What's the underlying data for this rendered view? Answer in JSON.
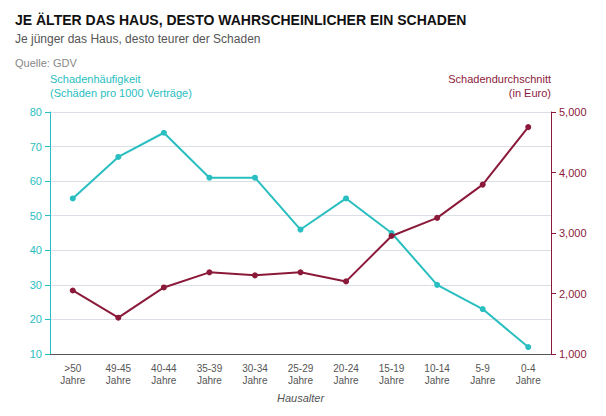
{
  "chart_data": {
    "type": "line",
    "title": "JE ÄLTER DAS HAUS, DESTO WAHRSCHEINLICHER EIN SCHADEN",
    "subtitle": "Je jünger das Haus, desto teurer der Schaden",
    "annotations": [
      "Quelle: GDV"
    ],
    "xlabel": "Hausalter",
    "categories": [
      ">50\nJahre",
      "49-45\nJahre",
      "40-44\nJahre",
      "35-39\nJahre",
      "30-34\nJahre",
      "25-29\nJahre",
      "20-24\nJahre",
      "15-19\nJahre",
      "10-14\nJahre",
      "5-9\nJahre",
      "0-4\nJahre"
    ],
    "series": [
      {
        "name": "Schadenhäufigkeit\n(Schäden pro 1000 Verträge)",
        "color": "#29bec0",
        "marker": "circle",
        "values": [
          55,
          67,
          74,
          61,
          61,
          46,
          55,
          45,
          30,
          23,
          12
        ]
      },
      {
        "name": "Schadendurchschnitt\n(in Euro)",
        "color": "#8b1a3a",
        "marker": "circle",
        "axis": "y2",
        "values": [
          2050,
          1600,
          2100,
          2350,
          2300,
          2350,
          2200,
          2950,
          3250,
          3800,
          4750
        ]
      }
    ],
    "ylim": [
      10,
      80
    ],
    "yticks": [
      10,
      20,
      30,
      40,
      50,
      60,
      70,
      80
    ],
    "y2lim": [
      1000,
      5000
    ],
    "y2ticks": [
      1000,
      2000,
      3000,
      4000,
      5000
    ],
    "grid": true
  }
}
